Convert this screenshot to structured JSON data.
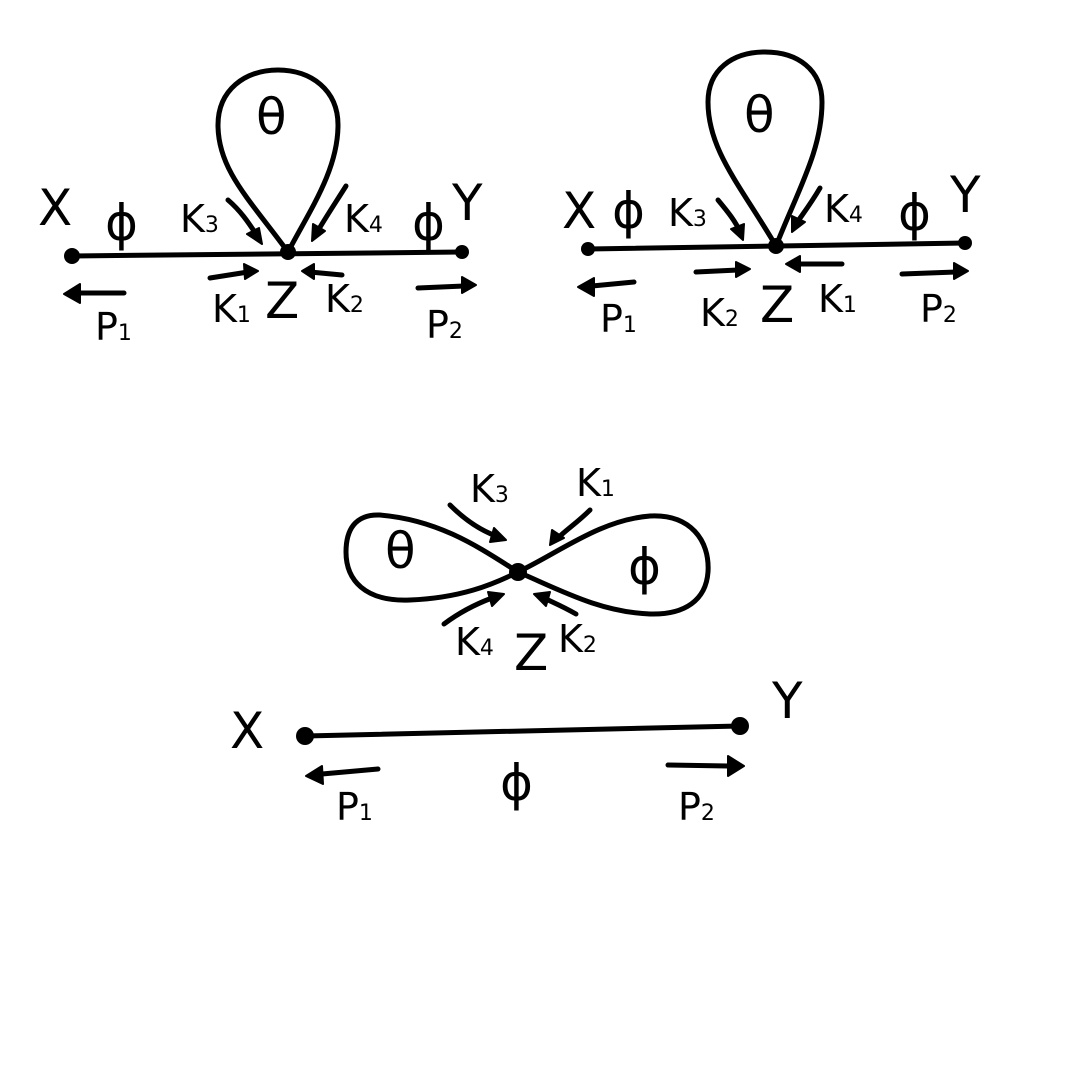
{
  "diagram_1": {
    "vertex_left": "X",
    "vertex_right": "Y",
    "vertex_center": "Z",
    "line_left_label": "ϕ",
    "line_right_label": "ϕ",
    "loop_label": "θ",
    "k_upper_left": "K",
    "k_upper_left_sub": "3",
    "k_upper_right": "K",
    "k_upper_right_sub": "4",
    "k_lower_left": "K",
    "k_lower_left_sub": "1",
    "k_lower_right": "K",
    "k_lower_right_sub": "2",
    "p_left": "P",
    "p_left_sub": "1",
    "p_right": "P",
    "p_right_sub": "2"
  },
  "diagram_2": {
    "vertex_left": "X",
    "vertex_right": "Y",
    "vertex_center": "Z",
    "line_left_label": "ϕ",
    "line_right_label": "ϕ",
    "loop_label": "θ",
    "k_upper_left": "K",
    "k_upper_left_sub": "3",
    "k_upper_right": "K",
    "k_upper_right_sub": "4",
    "k_lower_left": "K",
    "k_lower_left_sub": "2",
    "k_lower_right": "K",
    "k_lower_right_sub": "1",
    "p_left": "P",
    "p_left_sub": "1",
    "p_right": "P",
    "p_right_sub": "2"
  },
  "diagram_3": {
    "vertex_center": "Z",
    "loop_left_label": "θ",
    "loop_right_label": "ϕ",
    "k_top_left": "K",
    "k_top_left_sub": "3",
    "k_top_right": "K",
    "k_top_right_sub": "1",
    "k_bottom_left": "K",
    "k_bottom_left_sub": "4",
    "k_bottom_right": "K",
    "k_bottom_right_sub": "2"
  },
  "diagram_4": {
    "vertex_left": "X",
    "vertex_right": "Y",
    "line_label": "ϕ",
    "p_left": "P",
    "p_left_sub": "1",
    "p_right": "P",
    "p_right_sub": "2"
  }
}
